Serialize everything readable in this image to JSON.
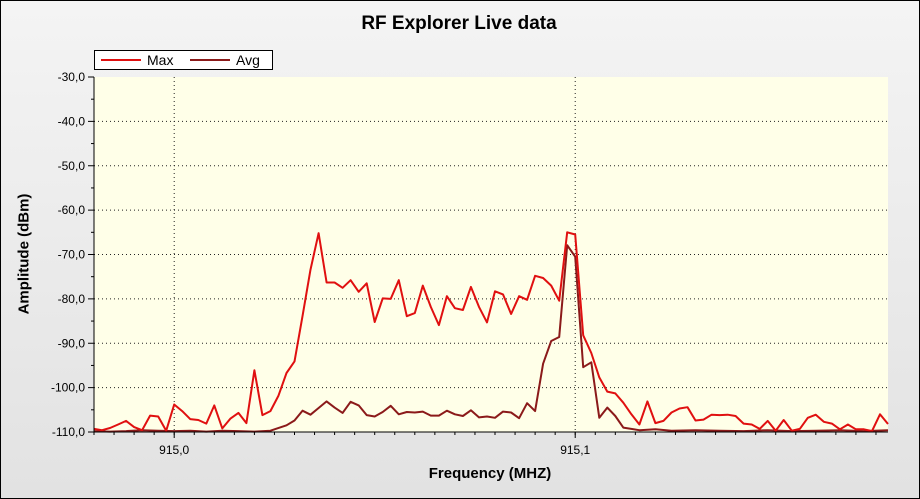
{
  "chart_data": {
    "type": "line",
    "title": "RF Explorer Live data",
    "xlabel": "Frequency (MHZ)",
    "ylabel": "Amplitude (dBm)",
    "xlim": [
      914.98,
      915.178
    ],
    "ylim": [
      -110,
      -30
    ],
    "y_ticks": [
      -30,
      -40,
      -50,
      -60,
      -70,
      -80,
      -90,
      -100,
      -110
    ],
    "y_tick_labels": [
      "-30,0",
      "-40,0",
      "-50,0",
      "-60,0",
      "-70,0",
      "-80,0",
      "-90,0",
      "-100,0",
      "-110,0"
    ],
    "x_ticks": [
      915.0,
      915.1
    ],
    "x_tick_labels": [
      "915,0",
      "915,1"
    ],
    "grid": true,
    "legend_position": "top-left",
    "background_color": "#ffffe8",
    "series": [
      {
        "name": "Max",
        "color": "#e01010",
        "points": [
          [
            914.98,
            -109.3
          ],
          [
            914.982,
            -109.6
          ],
          [
            914.984,
            -109.1
          ],
          [
            914.986,
            -108.3
          ],
          [
            914.988,
            -107.5
          ],
          [
            914.99,
            -108.9
          ],
          [
            914.992,
            -109.6
          ],
          [
            914.994,
            -106.3
          ],
          [
            914.996,
            -106.5
          ],
          [
            914.998,
            -109.7
          ],
          [
            915.0,
            -103.8
          ],
          [
            915.002,
            -105.3
          ],
          [
            915.004,
            -107.1
          ],
          [
            915.006,
            -107.3
          ],
          [
            915.008,
            -108.1
          ],
          [
            915.01,
            -104.0
          ],
          [
            915.012,
            -109.2
          ],
          [
            915.014,
            -107.0
          ],
          [
            915.016,
            -105.7
          ],
          [
            915.018,
            -108.0
          ],
          [
            915.02,
            -96.1
          ],
          [
            915.022,
            -106.2
          ],
          [
            915.024,
            -105.3
          ],
          [
            915.026,
            -101.8
          ],
          [
            915.028,
            -96.7
          ],
          [
            915.03,
            -94.1
          ],
          [
            915.032,
            -83.9
          ],
          [
            915.034,
            -73.4
          ],
          [
            915.036,
            -65.2
          ],
          [
            915.038,
            -76.3
          ],
          [
            915.04,
            -76.3
          ],
          [
            915.042,
            -77.5
          ],
          [
            915.044,
            -75.8
          ],
          [
            915.046,
            -78.4
          ],
          [
            915.048,
            -76.5
          ],
          [
            915.05,
            -85.2
          ],
          [
            915.052,
            -79.9
          ],
          [
            915.054,
            -80.0
          ],
          [
            915.056,
            -75.8
          ],
          [
            915.058,
            -83.9
          ],
          [
            915.06,
            -83.2
          ],
          [
            915.062,
            -77.0
          ],
          [
            915.064,
            -81.8
          ],
          [
            915.066,
            -85.9
          ],
          [
            915.068,
            -79.4
          ],
          [
            915.07,
            -82.1
          ],
          [
            915.072,
            -82.5
          ],
          [
            915.074,
            -77.3
          ],
          [
            915.076,
            -81.8
          ],
          [
            915.078,
            -85.3
          ],
          [
            915.08,
            -78.3
          ],
          [
            915.082,
            -79.0
          ],
          [
            915.084,
            -83.4
          ],
          [
            915.086,
            -79.4
          ],
          [
            915.088,
            -80.2
          ],
          [
            915.09,
            -74.8
          ],
          [
            915.092,
            -75.3
          ],
          [
            915.094,
            -77.0
          ],
          [
            915.096,
            -80.4
          ],
          [
            915.098,
            -65.0
          ],
          [
            915.1,
            -65.5
          ],
          [
            915.102,
            -88.2
          ],
          [
            915.104,
            -92.2
          ],
          [
            915.106,
            -97.7
          ],
          [
            915.108,
            -100.9
          ],
          [
            915.11,
            -101.3
          ],
          [
            915.112,
            -103.4
          ],
          [
            915.114,
            -106.0
          ],
          [
            915.116,
            -108.3
          ],
          [
            915.118,
            -103.1
          ],
          [
            915.12,
            -108.0
          ],
          [
            915.122,
            -107.5
          ],
          [
            915.124,
            -105.6
          ],
          [
            915.126,
            -104.7
          ],
          [
            915.128,
            -104.4
          ],
          [
            915.13,
            -107.4
          ],
          [
            915.132,
            -107.2
          ],
          [
            915.134,
            -106.1
          ],
          [
            915.136,
            -106.2
          ],
          [
            915.138,
            -106.1
          ],
          [
            915.14,
            -106.4
          ],
          [
            915.142,
            -108.1
          ],
          [
            915.144,
            -108.3
          ],
          [
            915.146,
            -109.3
          ],
          [
            915.148,
            -107.5
          ],
          [
            915.15,
            -109.7
          ],
          [
            915.152,
            -107.3
          ],
          [
            915.154,
            -109.7
          ],
          [
            915.156,
            -109.3
          ],
          [
            915.158,
            -106.8
          ],
          [
            915.16,
            -106.1
          ],
          [
            915.162,
            -107.7
          ],
          [
            915.164,
            -108.1
          ],
          [
            915.166,
            -109.4
          ],
          [
            915.168,
            -108.3
          ],
          [
            915.17,
            -109.4
          ],
          [
            915.172,
            -109.4
          ],
          [
            915.174,
            -109.8
          ],
          [
            915.176,
            -106.0
          ],
          [
            915.178,
            -108.2
          ]
        ]
      },
      {
        "name": "Avg",
        "color": "#8b1a1a",
        "points": [
          [
            914.98,
            -109.8
          ],
          [
            914.984,
            -109.9
          ],
          [
            914.988,
            -109.8
          ],
          [
            914.992,
            -109.6
          ],
          [
            914.996,
            -109.7
          ],
          [
            915.0,
            -109.8
          ],
          [
            915.004,
            -109.7
          ],
          [
            915.008,
            -109.9
          ],
          [
            915.012,
            -109.7
          ],
          [
            915.016,
            -109.8
          ],
          [
            915.02,
            -109.9
          ],
          [
            915.024,
            -109.7
          ],
          [
            915.028,
            -108.5
          ],
          [
            915.03,
            -107.4
          ],
          [
            915.032,
            -105.2
          ],
          [
            915.034,
            -106.1
          ],
          [
            915.036,
            -104.6
          ],
          [
            915.038,
            -103.1
          ],
          [
            915.04,
            -104.5
          ],
          [
            915.042,
            -105.7
          ],
          [
            915.044,
            -103.2
          ],
          [
            915.046,
            -104.0
          ],
          [
            915.048,
            -106.2
          ],
          [
            915.05,
            -106.5
          ],
          [
            915.052,
            -105.5
          ],
          [
            915.054,
            -104.1
          ],
          [
            915.056,
            -106.0
          ],
          [
            915.058,
            -105.5
          ],
          [
            915.06,
            -105.6
          ],
          [
            915.062,
            -105.4
          ],
          [
            915.064,
            -106.3
          ],
          [
            915.066,
            -106.3
          ],
          [
            915.068,
            -105.2
          ],
          [
            915.07,
            -106.0
          ],
          [
            915.072,
            -106.4
          ],
          [
            915.074,
            -105.1
          ],
          [
            915.076,
            -106.7
          ],
          [
            915.078,
            -106.5
          ],
          [
            915.08,
            -106.8
          ],
          [
            915.082,
            -105.4
          ],
          [
            915.084,
            -105.6
          ],
          [
            915.086,
            -106.9
          ],
          [
            915.088,
            -103.5
          ],
          [
            915.09,
            -105.3
          ],
          [
            915.092,
            -94.6
          ],
          [
            915.094,
            -89.5
          ],
          [
            915.096,
            -88.6
          ],
          [
            915.098,
            -67.9
          ],
          [
            915.1,
            -70.5
          ],
          [
            915.102,
            -95.4
          ],
          [
            915.104,
            -94.3
          ],
          [
            915.106,
            -106.8
          ],
          [
            915.108,
            -104.5
          ],
          [
            915.11,
            -106.4
          ],
          [
            915.112,
            -109.0
          ],
          [
            915.116,
            -109.6
          ],
          [
            915.12,
            -109.4
          ],
          [
            915.124,
            -109.7
          ],
          [
            915.13,
            -109.6
          ],
          [
            915.136,
            -109.7
          ],
          [
            915.142,
            -109.8
          ],
          [
            915.148,
            -109.6
          ],
          [
            915.154,
            -109.8
          ],
          [
            915.16,
            -109.7
          ],
          [
            915.166,
            -109.6
          ],
          [
            915.172,
            -109.8
          ],
          [
            915.178,
            -109.6
          ]
        ]
      }
    ]
  }
}
